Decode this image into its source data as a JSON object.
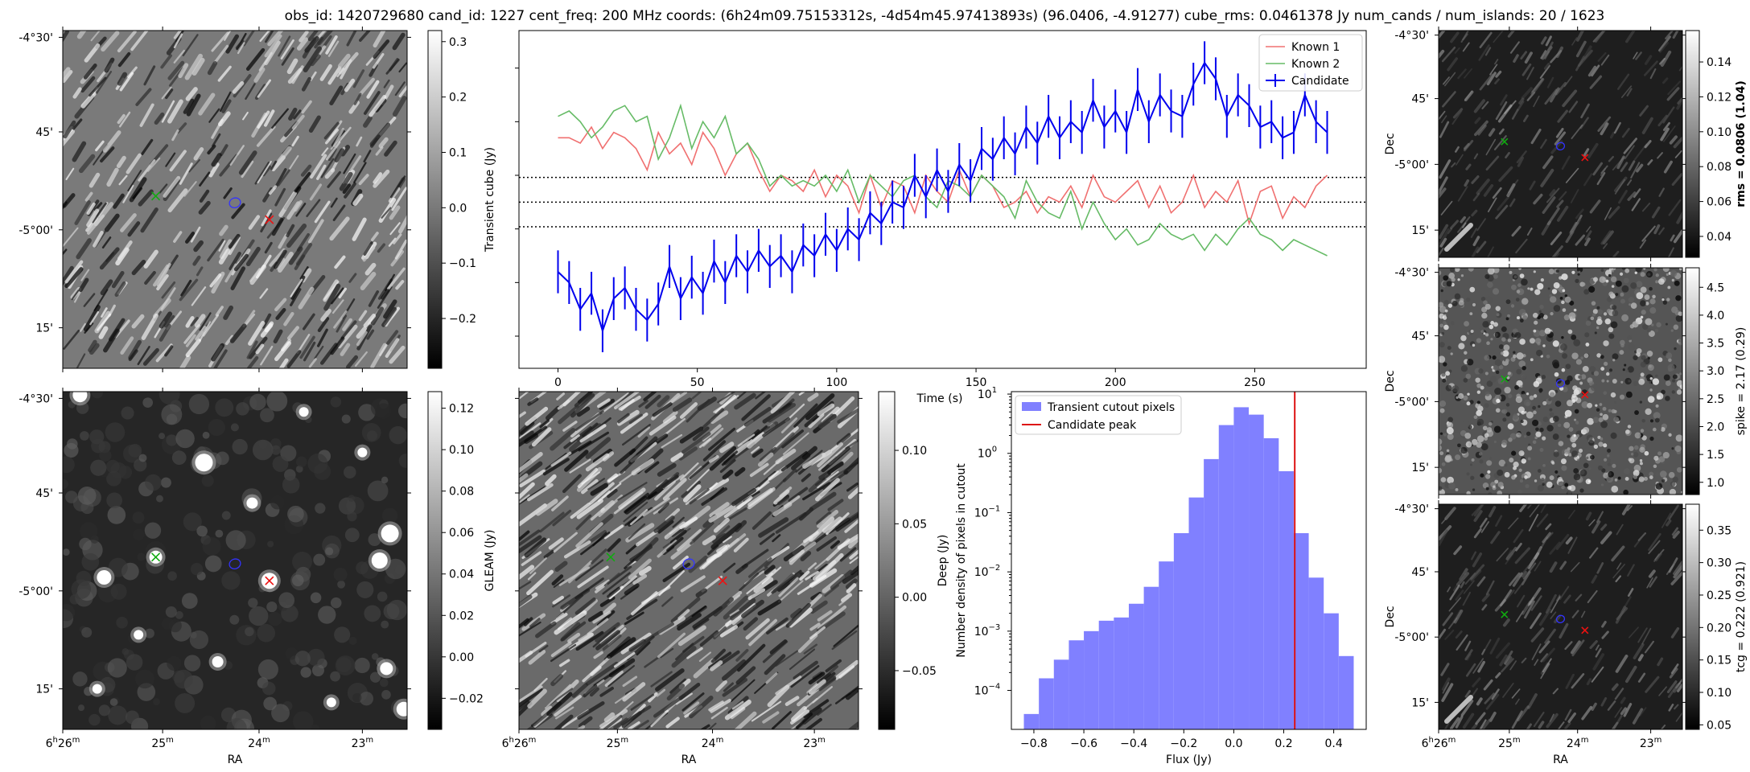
{
  "title": "obs_id: 1420729680 cand_id: 1227 cent_freq: 200 MHz coords: (6h24m09.75153312s, -4d54m45.97413893s) (96.0406, -4.91277) cube_rms: 0.0461378 Jy num_cands / num_islands: 20 / 1623",
  "image_axes": {
    "ra_label": "RA",
    "dec_label": "Dec",
    "ra_ticks": [
      {
        "h": "6",
        "hsup": "h",
        "m": "26",
        "msup": "m"
      },
      {
        "h": "",
        "hsup": "",
        "m": "25",
        "msup": "m"
      },
      {
        "h": "",
        "hsup": "",
        "m": "24",
        "msup": "m"
      },
      {
        "h": "",
        "hsup": "",
        "m": "23",
        "msup": "m"
      }
    ],
    "dec_ticks": [
      "-4°30'",
      "45'",
      "-5°00'",
      "15'"
    ]
  },
  "chart_data": [
    {
      "type": "heatmap",
      "panel": "transient-cube",
      "colorbar_label": "Transient cube (Jy)",
      "colorbar_ticks": [
        "0.3",
        "0.2",
        "0.1",
        "0.0",
        "−0.1",
        "−0.2"
      ],
      "colorbar_range": [
        -0.29,
        0.32
      ],
      "texture": "diagonal-streaks",
      "markers": {
        "known1": "x",
        "known2": "x",
        "candidate": "ellipse"
      }
    },
    {
      "type": "line",
      "panel": "lightcurve",
      "xlabel": "Time (s)",
      "xlim": [
        -14,
        290
      ],
      "ylim": [
        -0.31,
        0.32
      ],
      "xticks": [
        0,
        50,
        100,
        150,
        200,
        250
      ],
      "hlines": [
        0.046,
        0.0,
        -0.046
      ],
      "legend": {
        "placement": "top-right",
        "entries": [
          "Known 1",
          "Known 2",
          "Candidate"
        ]
      },
      "x": [
        0,
        4,
        8,
        12,
        16,
        20,
        24,
        28,
        32,
        36,
        40,
        44,
        48,
        52,
        56,
        60,
        64,
        68,
        72,
        76,
        80,
        84,
        88,
        92,
        96,
        100,
        104,
        108,
        112,
        116,
        120,
        124,
        128,
        132,
        136,
        140,
        144,
        148,
        152,
        156,
        160,
        164,
        168,
        172,
        176,
        180,
        184,
        188,
        192,
        196,
        200,
        204,
        208,
        212,
        216,
        220,
        224,
        228,
        232,
        236,
        240,
        244,
        248,
        252,
        256,
        260,
        264,
        268,
        272,
        276
      ],
      "series": [
        {
          "name": "Known 1",
          "color": "#f07070",
          "values": [
            0.12,
            0.12,
            0.11,
            0.14,
            0.1,
            0.13,
            0.12,
            0.1,
            0.06,
            0.13,
            0.09,
            0.11,
            0.07,
            0.13,
            0.1,
            0.05,
            0.09,
            0.11,
            0.06,
            0.02,
            0.05,
            0.04,
            0.02,
            0.06,
            0.01,
            0.05,
            0.03,
            -0.02,
            0.05,
            -0.01,
            0.04,
            0.03,
            -0.02,
            0.05,
            0.02,
            0.0,
            0.06,
            0.01,
            0.05,
            0.03,
            -0.01,
            0.0,
            0.02,
            -0.02,
            0.01,
            0.0,
            0.03,
            -0.01,
            0.05,
            0.01,
            0.0,
            0.02,
            0.04,
            -0.01,
            0.03,
            -0.02,
            0.0,
            0.05,
            -0.01,
            0.02,
            0.0,
            0.04,
            -0.04,
            0.02,
            0.03,
            -0.03,
            0.01,
            -0.01,
            0.03,
            0.05
          ]
        },
        {
          "name": "Known 2",
          "color": "#66bb66",
          "values": [
            0.16,
            0.17,
            0.15,
            0.12,
            0.14,
            0.17,
            0.18,
            0.15,
            0.16,
            0.08,
            0.12,
            0.18,
            0.1,
            0.15,
            0.12,
            0.16,
            0.09,
            0.11,
            0.08,
            0.03,
            0.05,
            0.03,
            0.04,
            0.03,
            0.05,
            0.02,
            0.06,
            0.0,
            0.05,
            0.03,
            0.01,
            0.04,
            0.05,
            0.01,
            -0.01,
            0.04,
            0.03,
            0.01,
            0.05,
            0.03,
            0.01,
            -0.03,
            0.04,
            0.0,
            -0.02,
            -0.03,
            0.02,
            -0.05,
            0.0,
            -0.04,
            -0.07,
            -0.05,
            -0.08,
            -0.07,
            -0.04,
            -0.06,
            -0.07,
            -0.06,
            -0.09,
            -0.06,
            -0.08,
            -0.05,
            -0.03,
            -0.06,
            -0.07,
            -0.09,
            -0.07,
            -0.08,
            -0.09,
            -0.1
          ]
        },
        {
          "name": "Candidate",
          "color": "#0000ee",
          "err": 0.04,
          "values": [
            -0.13,
            -0.15,
            -0.2,
            -0.17,
            -0.24,
            -0.18,
            -0.16,
            -0.2,
            -0.22,
            -0.19,
            -0.12,
            -0.18,
            -0.14,
            -0.17,
            -0.11,
            -0.15,
            -0.1,
            -0.13,
            -0.09,
            -0.12,
            -0.1,
            -0.13,
            -0.08,
            -0.1,
            -0.06,
            -0.09,
            -0.05,
            -0.07,
            -0.02,
            -0.04,
            0.0,
            -0.01,
            0.05,
            0.01,
            0.06,
            0.02,
            0.07,
            0.04,
            0.1,
            0.08,
            0.12,
            0.09,
            0.14,
            0.11,
            0.16,
            0.12,
            0.15,
            0.13,
            0.19,
            0.14,
            0.17,
            0.13,
            0.21,
            0.15,
            0.2,
            0.17,
            0.16,
            0.22,
            0.26,
            0.23,
            0.16,
            0.2,
            0.18,
            0.14,
            0.15,
            0.12,
            0.13,
            0.2,
            0.15,
            0.13
          ]
        }
      ]
    },
    {
      "type": "heatmap",
      "panel": "gleam",
      "colorbar_label": "GLEAM (Jy)",
      "colorbar_ticks": [
        "0.12",
        "0.10",
        "0.08",
        "0.06",
        "0.04",
        "0.02",
        "0.00",
        "−0.02"
      ],
      "colorbar_range": [
        -0.035,
        0.128
      ],
      "texture": "dark-with-point-sources",
      "markers": {
        "known1": "x",
        "known2": "x",
        "candidate": "ellipse"
      }
    },
    {
      "type": "heatmap",
      "panel": "deep",
      "colorbar_label": "Deep (Jy)",
      "colorbar_ticks": [
        "0.10",
        "0.05",
        "0.00",
        "−0.05"
      ],
      "colorbar_range": [
        -0.09,
        0.14
      ],
      "texture": "diagonal-streaks-fine",
      "markers": {
        "known1": "x",
        "known2": "x",
        "candidate": "ellipse"
      }
    },
    {
      "type": "bar",
      "panel": "histogram",
      "xlabel": "Flux (Jy)",
      "ylabel": "Number density of pixels in cutout",
      "yscale": "log",
      "xlim": [
        -0.89,
        0.53
      ],
      "ylim": [
        2.2e-05,
        11
      ],
      "xticks": [
        "−0.8",
        "−0.6",
        "−0.4",
        "−0.2",
        "0.0",
        "0.2",
        "0.4"
      ],
      "yticks": [
        "10^1",
        "10^0",
        "10^-1",
        "10^-2",
        "10^-3",
        "10^-4"
      ],
      "legend": {
        "placement": "top-left",
        "entries": [
          "Transient cutout pixels",
          "Candidate peak"
        ]
      },
      "bin_edges": [
        -0.84,
        -0.78,
        -0.72,
        -0.66,
        -0.6,
        -0.54,
        -0.48,
        -0.42,
        -0.36,
        -0.3,
        -0.24,
        -0.18,
        -0.12,
        -0.06,
        0.0,
        0.06,
        0.12,
        0.18,
        0.24,
        0.3,
        0.36,
        0.42,
        0.48
      ],
      "values": [
        4e-05,
        0.00016,
        0.00033,
        0.0007,
        0.001,
        0.0015,
        0.0017,
        0.0029,
        0.0056,
        0.015,
        0.045,
        0.18,
        0.8,
        3.0,
        6.0,
        4.5,
        1.8,
        0.5,
        0.045,
        0.008,
        0.002,
        0.00038
      ],
      "candidate_peak": 0.244,
      "bar_color": "#8080ff",
      "peak_color": "#dd1111"
    },
    {
      "type": "heatmap",
      "panel": "rms",
      "colorbar_label": "rms = 0.0806 (1.04)",
      "colorbar_ticks": [
        "0.14",
        "0.12",
        "0.10",
        "0.08",
        "0.06",
        "0.04"
      ],
      "colorbar_range": [
        0.028,
        0.158
      ],
      "texture": "dark-streaks",
      "markers": {
        "known1": "x",
        "known2": "x",
        "candidate": "ellipse"
      }
    },
    {
      "type": "heatmap",
      "panel": "spike",
      "colorbar_label": "spike = 2.17 (0.29)",
      "colorbar_ticks": [
        "4.5",
        "4.0",
        "3.5",
        "3.0",
        "2.5",
        "2.0",
        "1.5",
        "1.0"
      ],
      "colorbar_range": [
        0.78,
        4.85
      ],
      "texture": "speckle",
      "markers": {
        "known1": "x",
        "known2": "x",
        "candidate": "ellipse"
      }
    },
    {
      "type": "heatmap",
      "panel": "tcg",
      "colorbar_label": "tcg = 0.222 (0.921)",
      "colorbar_ticks": [
        "0.35",
        "0.30",
        "0.25",
        "0.20",
        "0.15",
        "0.10",
        "0.05"
      ],
      "colorbar_range": [
        0.043,
        0.39
      ],
      "texture": "dark-streaks",
      "markers": {
        "known1": "x",
        "known2": "x",
        "candidate": "ellipse"
      }
    }
  ]
}
